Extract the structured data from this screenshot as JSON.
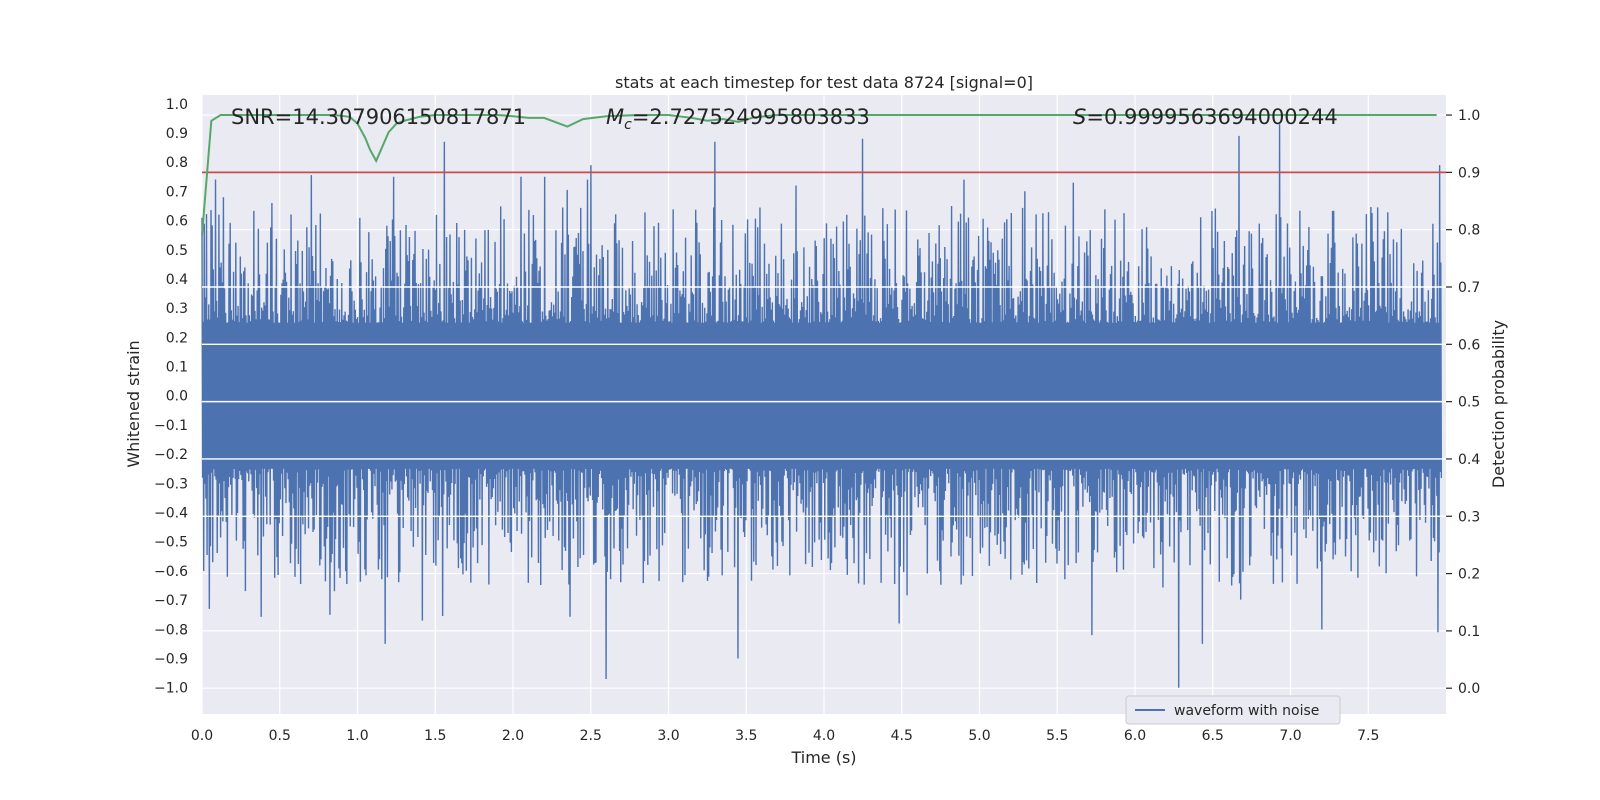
{
  "chart_data": {
    "type": "line",
    "title": "stats at each timestep for test data 8724 [signal=0]",
    "xlabel": "Time (s)",
    "ylabel_left": "Whitened strain",
    "ylabel_right": "Detection probability",
    "xlim": [
      0.0,
      8.0
    ],
    "ylim_left": [
      -1.09,
      1.03
    ],
    "ylim_right": [
      -0.045,
      1.035
    ],
    "x_ticks": [
      "0.0",
      "0.5",
      "1.0",
      "1.5",
      "2.0",
      "2.5",
      "3.0",
      "3.5",
      "4.0",
      "4.5",
      "5.0",
      "5.5",
      "6.0",
      "6.5",
      "7.0",
      "7.5"
    ],
    "x_tick_values": [
      0.0,
      0.5,
      1.0,
      1.5,
      2.0,
      2.5,
      3.0,
      3.5,
      4.0,
      4.5,
      5.0,
      5.5,
      6.0,
      6.5,
      7.0,
      7.5
    ],
    "y_ticks_left": [
      "1.0",
      "0.9",
      "0.8",
      "0.7",
      "0.6",
      "0.5",
      "0.4",
      "0.3",
      "0.2",
      "0.1",
      "0.0",
      "−0.1",
      "−0.2",
      "−0.3",
      "−0.4",
      "−0.5",
      "−0.6",
      "−0.7",
      "−0.8",
      "−0.9",
      "−1.0"
    ],
    "y_tick_values_left": [
      1.0,
      0.9,
      0.8,
      0.7,
      0.6,
      0.5,
      0.4,
      0.3,
      0.2,
      0.1,
      0.0,
      -0.1,
      -0.2,
      -0.3,
      -0.4,
      -0.5,
      -0.6,
      -0.7,
      -0.8,
      -0.9,
      -1.0
    ],
    "y_ticks_right": [
      "1.0",
      "0.9",
      "0.8",
      "0.7",
      "0.6",
      "0.5",
      "0.4",
      "0.3",
      "0.2",
      "0.1",
      "0.0"
    ],
    "y_tick_values_right": [
      1.0,
      0.9,
      0.8,
      0.7,
      0.6,
      0.5,
      0.4,
      0.3,
      0.2,
      0.1,
      0.0
    ],
    "annotations": {
      "snr": "SNR=14.307906150817871",
      "mc_symbol": "M",
      "mc_sub": "c",
      "mc_value": "=2.727524995803833",
      "s_symbol": "S",
      "s_value": "=0.9999563694000244"
    },
    "legend": {
      "label": "waveform with noise",
      "position": "lower-right"
    },
    "threshold": {
      "value": 0.9,
      "axis": "right",
      "color": "#c44e52"
    },
    "series": [
      {
        "name": "waveform with noise",
        "axis": "left",
        "color": "#4c72b0",
        "kind": "noise-envelope",
        "samples": 8192,
        "spikes": [
          {
            "x": 0.05,
            "y": -0.73
          },
          {
            "x": 0.14,
            "y": 0.68
          },
          {
            "x": 0.45,
            "y": 0.66
          },
          {
            "x": 0.82,
            "y": -0.75
          },
          {
            "x": 1.18,
            "y": -0.85
          },
          {
            "x": 1.23,
            "y": 0.75
          },
          {
            "x": 1.42,
            "y": -0.77
          },
          {
            "x": 1.56,
            "y": 0.87
          },
          {
            "x": 2.05,
            "y": 0.75
          },
          {
            "x": 2.2,
            "y": 0.75
          },
          {
            "x": 2.5,
            "y": 0.79
          },
          {
            "x": 2.6,
            "y": -0.97
          },
          {
            "x": 3.3,
            "y": 0.87
          },
          {
            "x": 3.45,
            "y": -0.9
          },
          {
            "x": 3.82,
            "y": 0.72
          },
          {
            "x": 4.25,
            "y": 0.88
          },
          {
            "x": 4.48,
            "y": -0.78
          },
          {
            "x": 4.9,
            "y": 0.74
          },
          {
            "x": 5.6,
            "y": 0.73
          },
          {
            "x": 5.72,
            "y": -0.82
          },
          {
            "x": 6.28,
            "y": -1.0
          },
          {
            "x": 6.43,
            "y": -0.85
          },
          {
            "x": 6.67,
            "y": 0.89
          },
          {
            "x": 6.93,
            "y": 0.93
          },
          {
            "x": 7.2,
            "y": -0.8
          },
          {
            "x": 7.96,
            "y": 0.79
          },
          {
            "x": 7.95,
            "y": -0.81
          }
        ]
      },
      {
        "name": "detection probability",
        "axis": "right",
        "color": "#55a868",
        "x": [
          0.0,
          0.06,
          0.12,
          0.2,
          0.3,
          0.5,
          0.7,
          0.85,
          0.95,
          1.0,
          1.05,
          1.08,
          1.12,
          1.16,
          1.2,
          1.25,
          1.3,
          1.4,
          1.5,
          1.7,
          1.9,
          2.0,
          2.1,
          2.2,
          2.3,
          2.35,
          2.45,
          2.6,
          2.8,
          3.0,
          3.15,
          3.25,
          3.35,
          3.45,
          3.55,
          3.7,
          4.0,
          4.5,
          5.0,
          5.5,
          6.0,
          6.5,
          7.0,
          7.5,
          7.94
        ],
        "y": [
          0.79,
          0.99,
          1.0,
          1.0,
          1.0,
          1.0,
          1.0,
          1.0,
          0.997,
          0.985,
          0.96,
          0.94,
          0.92,
          0.945,
          0.97,
          0.985,
          0.99,
          0.997,
          1.0,
          1.0,
          1.0,
          0.998,
          0.995,
          0.995,
          0.985,
          0.98,
          0.993,
          0.998,
          1.0,
          1.0,
          0.995,
          0.99,
          0.993,
          0.988,
          0.996,
          1.0,
          1.0,
          1.0,
          1.0,
          1.0,
          1.0,
          1.0,
          1.0,
          1.0,
          1.0
        ]
      }
    ]
  }
}
